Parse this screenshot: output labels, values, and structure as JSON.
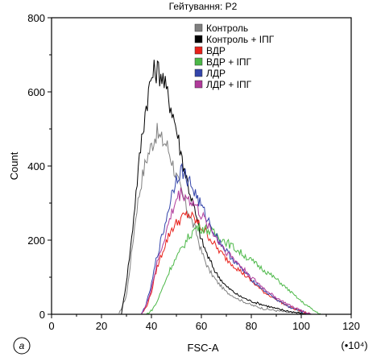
{
  "chart_data": {
    "type": "line",
    "title": "Гейтування: P2",
    "xlabel": "FSC-A",
    "ylabel": "Count",
    "x_multiplier": "(•10⁴)",
    "panel_label": "a",
    "xlim": [
      0,
      120
    ],
    "ylim": [
      0,
      800
    ],
    "x_ticks": [
      "0",
      "20",
      "40",
      "60",
      "80",
      "100",
      "120"
    ],
    "y_ticks": [
      "0",
      "200",
      "400",
      "600",
      "800"
    ],
    "legend_position": "top-right",
    "series": [
      {
        "name": "Контроль",
        "color": "#808080",
        "x": [
          27,
          30,
          32,
          34,
          36,
          38,
          40,
          42,
          44,
          46,
          48,
          50,
          52,
          55,
          58,
          60,
          63,
          66,
          70,
          75,
          80,
          85,
          90,
          95,
          100,
          104
        ],
        "y": [
          0,
          50,
          160,
          280,
          360,
          420,
          455,
          490,
          470,
          460,
          420,
          370,
          330,
          270,
          220,
          170,
          120,
          90,
          60,
          40,
          25,
          15,
          10,
          5,
          2,
          0
        ]
      },
      {
        "name": "Контроль + ІПГ",
        "color": "#000000",
        "x": [
          28,
          30,
          32,
          34,
          36,
          38,
          40,
          42,
          44,
          46,
          48,
          50,
          52,
          55,
          58,
          60,
          63,
          66,
          70,
          75,
          80,
          85,
          90,
          95,
          100,
          104
        ],
        "y": [
          0,
          90,
          200,
          340,
          470,
          570,
          640,
          660,
          650,
          600,
          560,
          500,
          430,
          340,
          260,
          200,
          150,
          110,
          75,
          50,
          35,
          25,
          15,
          8,
          3,
          0
        ]
      },
      {
        "name": "ВДР",
        "color": "#e8201a",
        "x": [
          36,
          38,
          40,
          42,
          45,
          48,
          52,
          55,
          58,
          62,
          66,
          70,
          75,
          80,
          85,
          90,
          95,
          100,
          104
        ],
        "y": [
          0,
          20,
          60,
          120,
          180,
          230,
          260,
          270,
          250,
          220,
          180,
          150,
          120,
          90,
          60,
          40,
          20,
          8,
          0
        ]
      },
      {
        "name": "ВДР + ІПГ",
        "color": "#4cb848",
        "x": [
          38,
          40,
          42,
          45,
          48,
          52,
          55,
          58,
          62,
          66,
          70,
          75,
          80,
          85,
          90,
          95,
          100,
          105,
          108
        ],
        "y": [
          0,
          10,
          30,
          80,
          130,
          175,
          210,
          235,
          230,
          215,
          195,
          170,
          145,
          120,
          95,
          65,
          35,
          10,
          0
        ]
      },
      {
        "name": "ЛДР",
        "color": "#3344aa",
        "x": [
          36,
          38,
          40,
          42,
          45,
          48,
          50,
          52,
          55,
          58,
          60,
          63,
          66,
          70,
          75,
          80,
          85,
          90,
          95,
          100,
          104
        ],
        "y": [
          0,
          30,
          80,
          150,
          230,
          320,
          370,
          390,
          360,
          320,
          290,
          250,
          210,
          170,
          130,
          95,
          65,
          40,
          20,
          8,
          0
        ]
      },
      {
        "name": "ЛДР + ІПГ",
        "color": "#b03a9a",
        "x": [
          36,
          38,
          40,
          42,
          45,
          48,
          50,
          52,
          55,
          58,
          60,
          63,
          66,
          70,
          75,
          80,
          85,
          90,
          95,
          100,
          104
        ],
        "y": [
          0,
          25,
          70,
          130,
          200,
          270,
          310,
          330,
          310,
          290,
          265,
          240,
          205,
          170,
          135,
          100,
          70,
          45,
          25,
          10,
          0
        ]
      }
    ]
  }
}
